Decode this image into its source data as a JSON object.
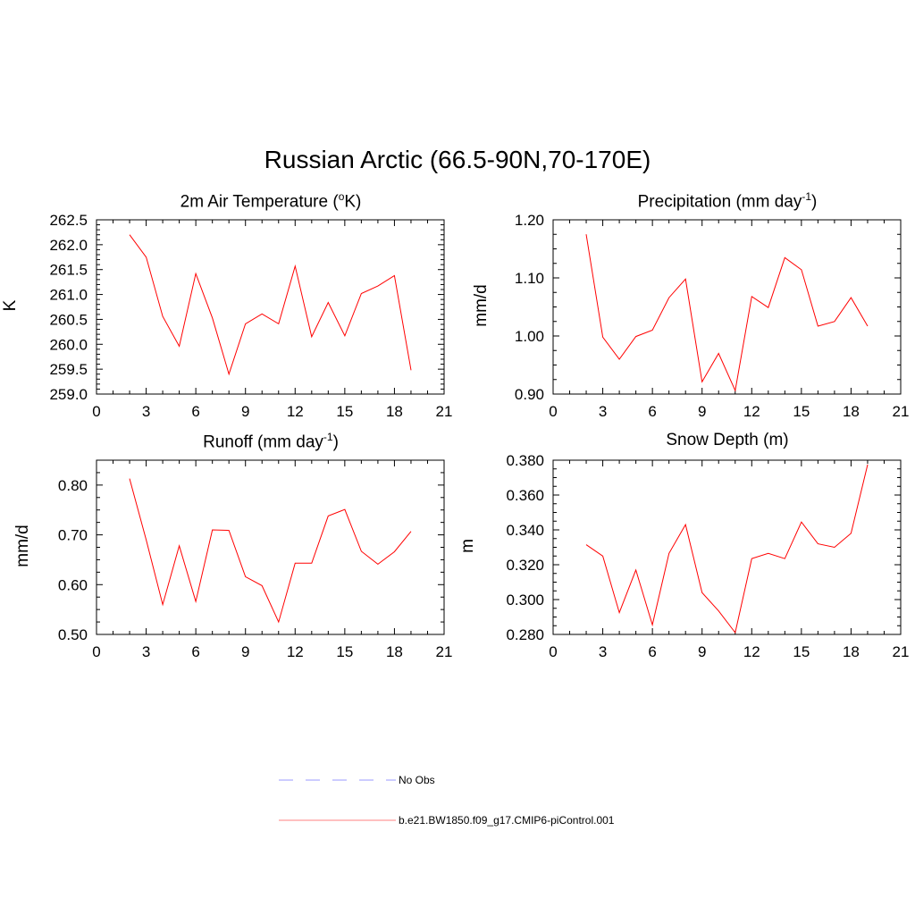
{
  "title": "Russian Arctic (66.5-90N,70-170E)",
  "chart_data": [
    {
      "type": "line",
      "title_main": "2m Air Temperature (",
      "title_sup": "o",
      "title_end": "K)",
      "ylabel": "K",
      "xlabel": "",
      "xlim": [
        0,
        21
      ],
      "xticks": [
        0,
        3,
        6,
        9,
        12,
        15,
        18,
        21
      ],
      "xtick_labels": [
        "0",
        "3",
        "6",
        "9",
        "12",
        "15",
        "18",
        "21"
      ],
      "ylim": [
        259.0,
        262.5
      ],
      "yticks": [
        259.0,
        259.5,
        260.0,
        260.5,
        261.0,
        261.5,
        262.0,
        262.5
      ],
      "ytick_labels": [
        "259.0",
        "259.5",
        "260.0",
        "260.5",
        "261.0",
        "261.5",
        "262.0",
        "262.5"
      ],
      "series": [
        {
          "color": "#ff0000",
          "x": [
            2,
            3,
            4,
            5,
            6,
            7,
            8,
            9,
            10,
            11,
            12,
            13,
            14,
            15,
            16,
            17,
            18,
            19
          ],
          "y": [
            262.2,
            261.75,
            260.56,
            259.96,
            261.42,
            260.53,
            259.4,
            260.41,
            260.61,
            260.41,
            261.57,
            260.15,
            260.84,
            260.17,
            261.02,
            261.17,
            261.38,
            259.48
          ]
        }
      ]
    },
    {
      "type": "line",
      "title_main": "Precipitation (mm day",
      "title_sup": "-1",
      "title_end": ")",
      "ylabel": "mm/d",
      "xlabel": "",
      "xlim": [
        0,
        21
      ],
      "xticks": [
        0,
        3,
        6,
        9,
        12,
        15,
        18,
        21
      ],
      "xtick_labels": [
        "0",
        "3",
        "6",
        "9",
        "12",
        "15",
        "18",
        "21"
      ],
      "ylim": [
        0.9,
        1.2
      ],
      "yticks": [
        0.9,
        1.0,
        1.1,
        1.2
      ],
      "ytick_labels": [
        "0.90",
        "1.00",
        "1.10",
        "1.20"
      ],
      "series": [
        {
          "color": "#ff0000",
          "x": [
            2,
            3,
            4,
            5,
            6,
            7,
            8,
            9,
            10,
            11,
            12,
            13,
            14,
            15,
            16,
            17,
            18,
            19
          ],
          "y": [
            1.175,
            0.998,
            0.96,
            0.999,
            1.01,
            1.066,
            1.098,
            0.921,
            0.97,
            0.906,
            1.068,
            1.049,
            1.135,
            1.114,
            1.017,
            1.025,
            1.066,
            1.017
          ]
        }
      ]
    },
    {
      "type": "line",
      "title_main": "Runoff (mm day",
      "title_sup": "-1",
      "title_end": ")",
      "ylabel": "mm/d",
      "xlabel": "",
      "xlim": [
        0,
        21
      ],
      "xticks": [
        0,
        3,
        6,
        9,
        12,
        15,
        18,
        21
      ],
      "xtick_labels": [
        "0",
        "3",
        "6",
        "9",
        "12",
        "15",
        "18",
        "21"
      ],
      "ylim": [
        0.5,
        0.85
      ],
      "yticks": [
        0.5,
        0.6,
        0.7,
        0.8
      ],
      "ytick_labels": [
        "0.50",
        "0.60",
        "0.70",
        "0.80"
      ],
      "series": [
        {
          "color": "#ff0000",
          "x": [
            2,
            3,
            4,
            5,
            6,
            7,
            8,
            9,
            10,
            11,
            12,
            13,
            14,
            15,
            16,
            17,
            18,
            19
          ],
          "y": [
            0.813,
            0.69,
            0.56,
            0.678,
            0.566,
            0.71,
            0.709,
            0.616,
            0.598,
            0.525,
            0.643,
            0.643,
            0.738,
            0.751,
            0.667,
            0.641,
            0.666,
            0.707
          ]
        }
      ]
    },
    {
      "type": "line",
      "title_main": "Snow Depth (m)",
      "title_sup": "",
      "title_end": "",
      "ylabel": "m",
      "xlabel": "",
      "xlim": [
        0,
        21
      ],
      "xticks": [
        0,
        3,
        6,
        9,
        12,
        15,
        18,
        21
      ],
      "xtick_labels": [
        "0",
        "3",
        "6",
        "9",
        "12",
        "15",
        "18",
        "21"
      ],
      "ylim": [
        0.28,
        0.38
      ],
      "yticks": [
        0.28,
        0.3,
        0.32,
        0.34,
        0.36,
        0.38
      ],
      "ytick_labels": [
        "0.280",
        "0.300",
        "0.320",
        "0.340",
        "0.360",
        "0.380"
      ],
      "series": [
        {
          "color": "#ff0000",
          "x": [
            2,
            3,
            4,
            5,
            6,
            7,
            8,
            9,
            10,
            11,
            12,
            13,
            14,
            15,
            16,
            17,
            18,
            19
          ],
          "y": [
            0.3315,
            0.325,
            0.2925,
            0.317,
            0.2855,
            0.3265,
            0.343,
            0.304,
            0.2935,
            0.281,
            0.3235,
            0.3265,
            0.3235,
            0.3445,
            0.332,
            0.33,
            0.338,
            0.3775
          ]
        }
      ]
    }
  ],
  "legend": [
    {
      "label": "No Obs",
      "color": "#9999ff",
      "dash": "dashed"
    },
    {
      "label": "b.e21.BW1850.f09_g17.CMIP6-piControl.001",
      "color": "#ff8080",
      "dash": "solid"
    }
  ]
}
